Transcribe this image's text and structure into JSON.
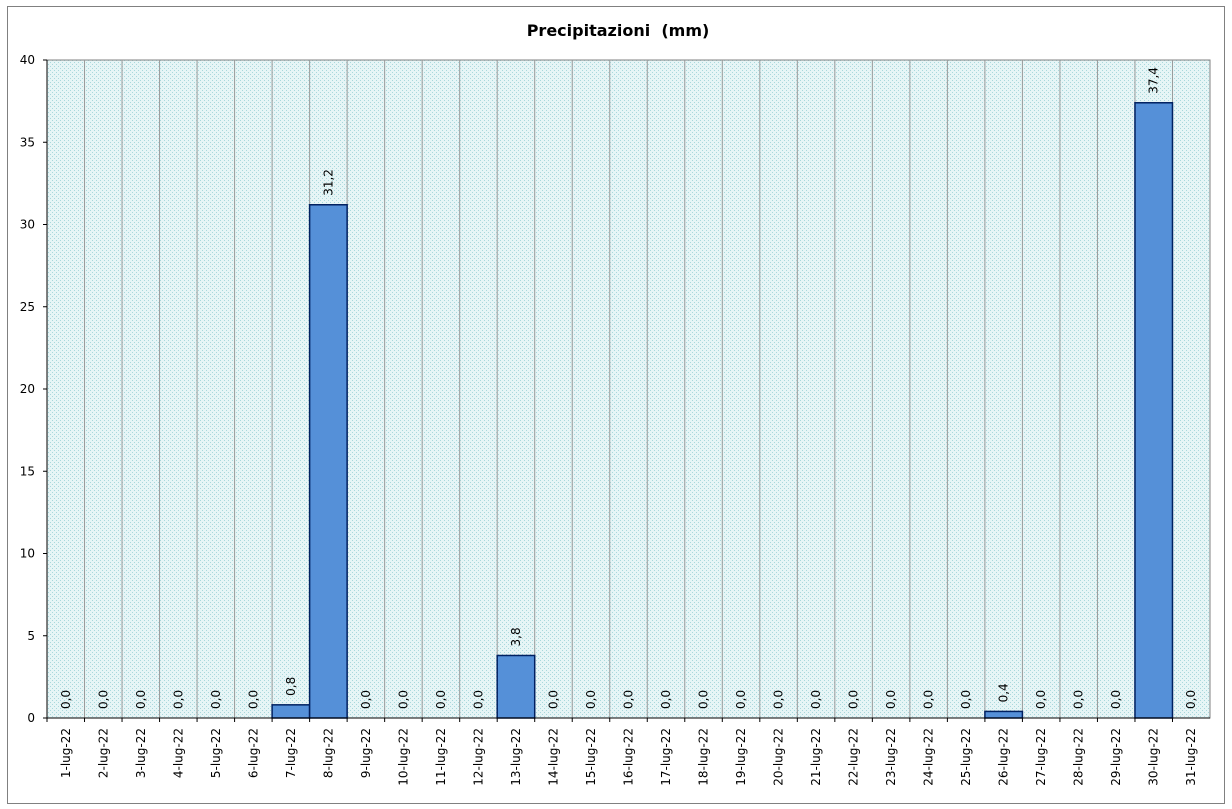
{
  "chart_data": {
    "type": "bar",
    "title": "Precipitazioni  (mm)",
    "xlabel": "",
    "ylabel": "",
    "ylim": [
      0,
      40
    ],
    "yticks": [
      0,
      5,
      10,
      15,
      20,
      25,
      30,
      35,
      40
    ],
    "grid": true,
    "legend": "none",
    "categories": [
      "1-lug-22",
      "2-lug-22",
      "3-lug-22",
      "4-lug-22",
      "5-lug-22",
      "6-lug-22",
      "7-lug-22",
      "8-lug-22",
      "9-lug-22",
      "10-lug-22",
      "11-lug-22",
      "12-lug-22",
      "13-lug-22",
      "14-lug-22",
      "15-lug-22",
      "16-lug-22",
      "17-lug-22",
      "18-lug-22",
      "19-lug-22",
      "20-lug-22",
      "21-lug-22",
      "22-lug-22",
      "23-lug-22",
      "24-lug-22",
      "25-lug-22",
      "26-lug-22",
      "27-lug-22",
      "28-lug-22",
      "29-lug-22",
      "30-lug-22",
      "31-lug-22"
    ],
    "values": [
      0,
      0,
      0,
      0,
      0,
      0,
      0.8,
      31.2,
      0,
      0,
      0,
      0,
      3.8,
      0,
      0,
      0,
      0,
      0,
      0,
      0,
      0,
      0,
      0,
      0,
      0,
      0.4,
      0,
      0,
      0,
      37.4,
      0
    ],
    "data_labels": [
      "0,0",
      "0,0",
      "0,0",
      "0,0",
      "0,0",
      "0,0",
      "0,8",
      "31,2",
      "0,0",
      "0,0",
      "0,0",
      "0,0",
      "3,8",
      "0,0",
      "0,0",
      "0,0",
      "0,0",
      "0,0",
      "0,0",
      "0,0",
      "0,0",
      "0,0",
      "0,0",
      "0,0",
      "0,0",
      "0,4",
      "0,0",
      "0,0",
      "0,0",
      "37,4",
      "0,0"
    ],
    "colors": {
      "bar_fill": "#5590d8",
      "bar_stroke": "#002060",
      "plot_bg": "#dff2f4",
      "grid": "#9a9a9a",
      "axis": "#000000"
    }
  }
}
